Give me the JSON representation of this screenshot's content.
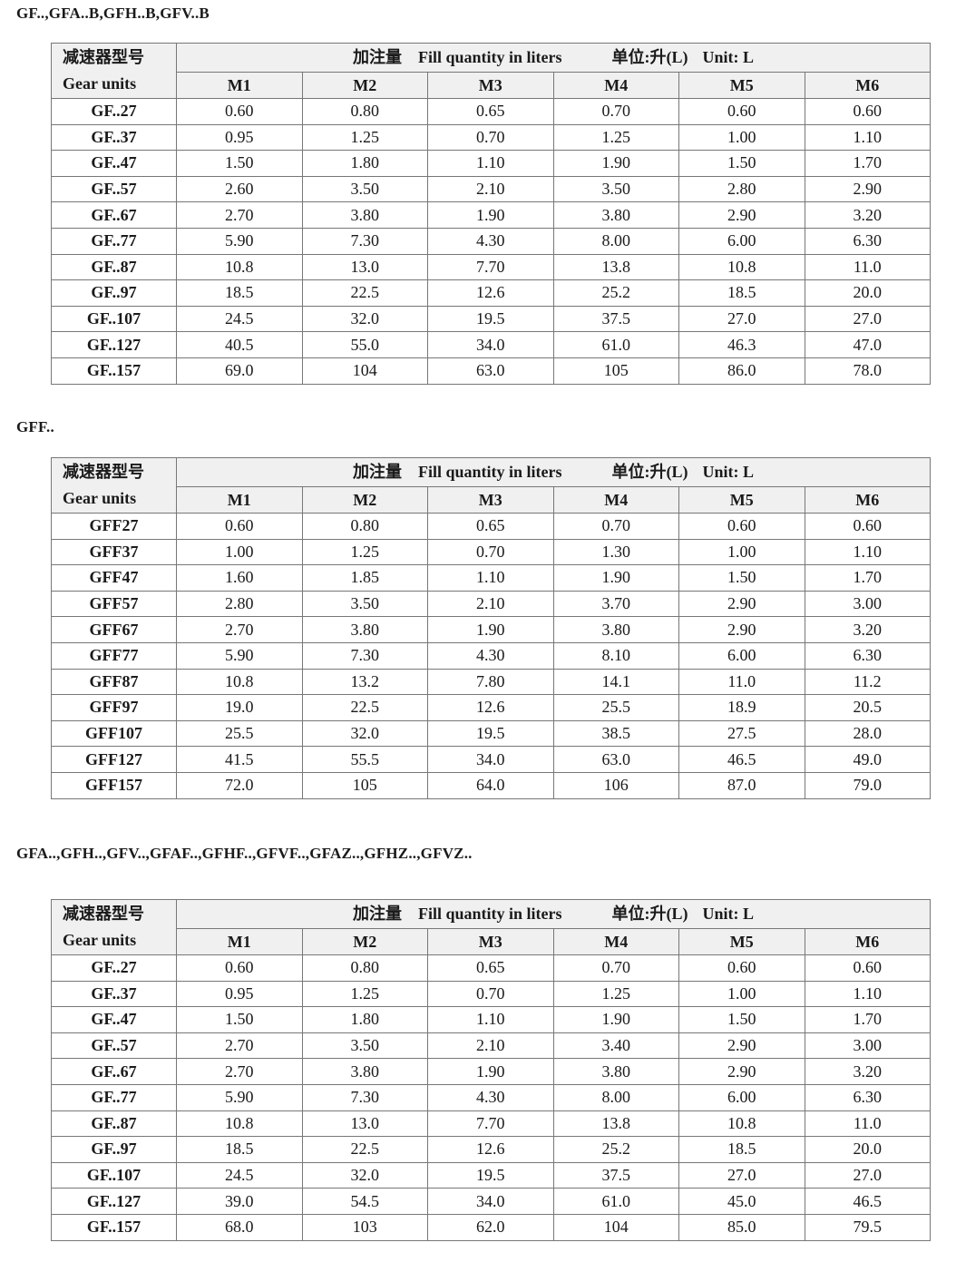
{
  "common": {
    "gear_units_cn": "减速器型号",
    "gear_units_en": "Gear units",
    "fill_cn": "加注量",
    "fill_en": "Fill quantity in liters",
    "unit_cn": "单位:升(L)",
    "unit_en": "Unit: L",
    "columns": [
      "M1",
      "M2",
      "M3",
      "M4",
      "M5",
      "M6"
    ]
  },
  "sections": [
    {
      "title": "GF..,GFA..B,GFH..B,GFV..B",
      "rows": [
        {
          "model": "GF..27",
          "values": [
            "0.60",
            "0.80",
            "0.65",
            "0.70",
            "0.60",
            "0.60"
          ]
        },
        {
          "model": "GF..37",
          "values": [
            "0.95",
            "1.25",
            "0.70",
            "1.25",
            "1.00",
            "1.10"
          ]
        },
        {
          "model": "GF..47",
          "values": [
            "1.50",
            "1.80",
            "1.10",
            "1.90",
            "1.50",
            "1.70"
          ]
        },
        {
          "model": "GF..57",
          "values": [
            "2.60",
            "3.50",
            "2.10",
            "3.50",
            "2.80",
            "2.90"
          ]
        },
        {
          "model": "GF..67",
          "values": [
            "2.70",
            "3.80",
            "1.90",
            "3.80",
            "2.90",
            "3.20"
          ]
        },
        {
          "model": "GF..77",
          "values": [
            "5.90",
            "7.30",
            "4.30",
            "8.00",
            "6.00",
            "6.30"
          ]
        },
        {
          "model": "GF..87",
          "values": [
            "10.8",
            "13.0",
            "7.70",
            "13.8",
            "10.8",
            "11.0"
          ]
        },
        {
          "model": "GF..97",
          "values": [
            "18.5",
            "22.5",
            "12.6",
            "25.2",
            "18.5",
            "20.0"
          ]
        },
        {
          "model": "GF..107",
          "values": [
            "24.5",
            "32.0",
            "19.5",
            "37.5",
            "27.0",
            "27.0"
          ]
        },
        {
          "model": "GF..127",
          "values": [
            "40.5",
            "55.0",
            "34.0",
            "61.0",
            "46.3",
            "47.0"
          ]
        },
        {
          "model": "GF..157",
          "values": [
            "69.0",
            "104",
            "63.0",
            "105",
            "86.0",
            "78.0"
          ]
        }
      ]
    },
    {
      "title": "GFF..",
      "rows": [
        {
          "model": "GFF27",
          "values": [
            "0.60",
            "0.80",
            "0.65",
            "0.70",
            "0.60",
            "0.60"
          ]
        },
        {
          "model": "GFF37",
          "values": [
            "1.00",
            "1.25",
            "0.70",
            "1.30",
            "1.00",
            "1.10"
          ]
        },
        {
          "model": "GFF47",
          "values": [
            "1.60",
            "1.85",
            "1.10",
            "1.90",
            "1.50",
            "1.70"
          ]
        },
        {
          "model": "GFF57",
          "values": [
            "2.80",
            "3.50",
            "2.10",
            "3.70",
            "2.90",
            "3.00"
          ]
        },
        {
          "model": "GFF67",
          "values": [
            "2.70",
            "3.80",
            "1.90",
            "3.80",
            "2.90",
            "3.20"
          ]
        },
        {
          "model": "GFF77",
          "values": [
            "5.90",
            "7.30",
            "4.30",
            "8.10",
            "6.00",
            "6.30"
          ]
        },
        {
          "model": "GFF87",
          "values": [
            "10.8",
            "13.2",
            "7.80",
            "14.1",
            "11.0",
            "11.2"
          ]
        },
        {
          "model": "GFF97",
          "values": [
            "19.0",
            "22.5",
            "12.6",
            "25.5",
            "18.9",
            "20.5"
          ]
        },
        {
          "model": "GFF107",
          "values": [
            "25.5",
            "32.0",
            "19.5",
            "38.5",
            "27.5",
            "28.0"
          ]
        },
        {
          "model": "GFF127",
          "values": [
            "41.5",
            "55.5",
            "34.0",
            "63.0",
            "46.5",
            "49.0"
          ]
        },
        {
          "model": "GFF157",
          "values": [
            "72.0",
            "105",
            "64.0",
            "106",
            "87.0",
            "79.0"
          ]
        }
      ]
    },
    {
      "title": "GFA..,GFH..,GFV..,GFAF..,GFHF..,GFVF..,GFAZ..,GFHZ..,GFVZ..",
      "rows": [
        {
          "model": "GF..27",
          "values": [
            "0.60",
            "0.80",
            "0.65",
            "0.70",
            "0.60",
            "0.60"
          ]
        },
        {
          "model": "GF..37",
          "values": [
            "0.95",
            "1.25",
            "0.70",
            "1.25",
            "1.00",
            "1.10"
          ]
        },
        {
          "model": "GF..47",
          "values": [
            "1.50",
            "1.80",
            "1.10",
            "1.90",
            "1.50",
            "1.70"
          ]
        },
        {
          "model": "GF..57",
          "values": [
            "2.70",
            "3.50",
            "2.10",
            "3.40",
            "2.90",
            "3.00"
          ]
        },
        {
          "model": "GF..67",
          "values": [
            "2.70",
            "3.80",
            "1.90",
            "3.80",
            "2.90",
            "3.20"
          ]
        },
        {
          "model": "GF..77",
          "values": [
            "5.90",
            "7.30",
            "4.30",
            "8.00",
            "6.00",
            "6.30"
          ]
        },
        {
          "model": "GF..87",
          "values": [
            "10.8",
            "13.0",
            "7.70",
            "13.8",
            "10.8",
            "11.0"
          ]
        },
        {
          "model": "GF..97",
          "values": [
            "18.5",
            "22.5",
            "12.6",
            "25.2",
            "18.5",
            "20.0"
          ]
        },
        {
          "model": "GF..107",
          "values": [
            "24.5",
            "32.0",
            "19.5",
            "37.5",
            "27.0",
            "27.0"
          ]
        },
        {
          "model": "GF..127",
          "values": [
            "39.0",
            "54.5",
            "34.0",
            "61.0",
            "45.0",
            "46.5"
          ]
        },
        {
          "model": "GF..157",
          "values": [
            "68.0",
            "103",
            "62.0",
            "104",
            "85.0",
            "79.5"
          ]
        }
      ]
    }
  ]
}
